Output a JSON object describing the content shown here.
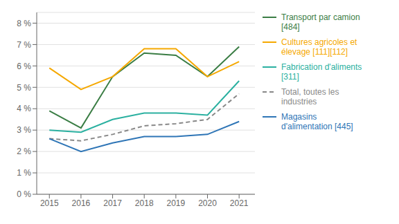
{
  "chart_data": {
    "type": "line",
    "x": [
      2015,
      2016,
      2017,
      2018,
      2019,
      2020,
      2021
    ],
    "xlim": [
      2014.6,
      2021.5
    ],
    "xticks": [
      2015,
      2016,
      2017,
      2018,
      2019,
      2020,
      2021
    ],
    "ylim": [
      0,
      8.5
    ],
    "yticks": [
      {
        "value": 0,
        "label": "0 %"
      },
      {
        "value": 1,
        "label": "1 %"
      },
      {
        "value": 2,
        "label": "2 %"
      },
      {
        "value": 3,
        "label": "3 %"
      },
      {
        "value": 4,
        "label": "4 %"
      },
      {
        "value": 5,
        "label": "5 %"
      },
      {
        "value": 6,
        "label": "6 %"
      },
      {
        "value": 7,
        "label": "7 %"
      },
      {
        "value": 8,
        "label": "8 %"
      }
    ],
    "grid": true,
    "legend": "right",
    "series": [
      {
        "name": "Transport par camion\n[484]",
        "color": "#3a7d44",
        "line_style": "solid",
        "values": [
          3.9,
          3.1,
          5.5,
          6.6,
          6.5,
          5.5,
          6.9
        ]
      },
      {
        "name": "Cultures agricoles et\nélevage [111][112]",
        "color": "#f5a800",
        "line_style": "solid",
        "values": [
          5.9,
          4.9,
          5.5,
          6.8,
          6.8,
          5.5,
          6.2
        ]
      },
      {
        "name": "Fabrication d'aliments\n[311]",
        "color": "#2ab0a0",
        "line_style": "solid",
        "values": [
          3.0,
          2.9,
          3.5,
          3.8,
          3.8,
          3.7,
          5.3
        ]
      },
      {
        "name": "Total, toutes les\nindustries",
        "color": "#888888",
        "line_style": "dashed",
        "values": [
          2.6,
          2.5,
          2.8,
          3.2,
          3.3,
          3.5,
          4.7
        ]
      },
      {
        "name": "Magasins\nd'alimentation [445]",
        "color": "#2e75b6",
        "line_style": "solid",
        "values": [
          2.6,
          2.0,
          2.4,
          2.7,
          2.7,
          2.8,
          3.4
        ]
      }
    ]
  }
}
